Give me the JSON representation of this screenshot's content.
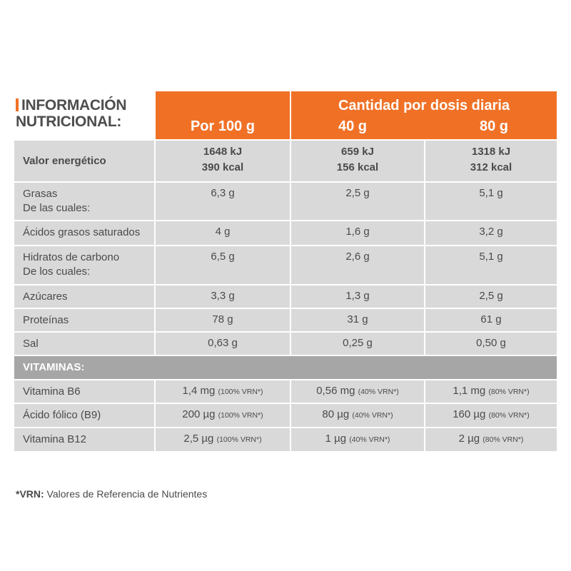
{
  "title": {
    "line1": "INFORMACIÓN",
    "line2": "NUTRICIONAL:"
  },
  "header": {
    "per100": "Por 100 g",
    "dose_title": "Cantidad por dosis diaria",
    "dose_a": "40 g",
    "dose_b": "80 g"
  },
  "energy": {
    "label": "Valor energético",
    "v1a": "1648 kJ",
    "v1b": "390 kcal",
    "v2a": "659 kJ",
    "v2b": "156 kcal",
    "v3a": "1318 kJ",
    "v3b": "312 kcal"
  },
  "rows": [
    {
      "label": "Grasas",
      "label2": "De las cuales:",
      "v1": "6,3 g",
      "v2": "2,5 g",
      "v3": "5,1 g"
    },
    {
      "label": "Ácidos grasos saturados",
      "v1": "4 g",
      "v2": "1,6 g",
      "v3": "3,2 g"
    },
    {
      "label": "Hidratos de carbono",
      "label2": "De los cuales:",
      "v1": "6,5 g",
      "v2": "2,6 g",
      "v3": "5,1 g"
    },
    {
      "label": "Azúcares",
      "v1": "3,3 g",
      "v2": "1,3 g",
      "v3": "2,5 g"
    },
    {
      "label": "Proteínas",
      "v1": "78 g",
      "v2": "31 g",
      "v3": "61 g"
    },
    {
      "label": "Sal",
      "v1": "0,63 g",
      "v2": "0,25 g",
      "v3": "0,50 g"
    }
  ],
  "vitamins": {
    "heading": "VITAMINAS:",
    "rows": [
      {
        "label": "Vitamina B6",
        "v1": "1,4 mg",
        "p1": "(100% VRN*)",
        "v2": "0,56 mg",
        "p2": "(40% VRN*)",
        "v3": "1,1 mg",
        "p3": "(80% VRN*)"
      },
      {
        "label": "Ácido fólico (B9)",
        "v1": "200 µg",
        "p1": "(100% VRN*)",
        "v2": "80 µg",
        "p2": "(40% VRN*)",
        "v3": "160 µg",
        "p3": "(80% VRN*)"
      },
      {
        "label": "Vitamina B12",
        "v1": "2,5 µg",
        "p1": "(100% VRN*)",
        "v2": "1 µg",
        "p2": "(40% VRN*)",
        "v3": "2 µg",
        "p3": "(80% VRN*)"
      }
    ]
  },
  "footnote": {
    "key": "*VRN:",
    "text": " Valores de Referencia de Nutrientes"
  },
  "colors": {
    "accent": "#f07126",
    "cell": "#d9d9d9",
    "section": "#a6a6a6"
  }
}
